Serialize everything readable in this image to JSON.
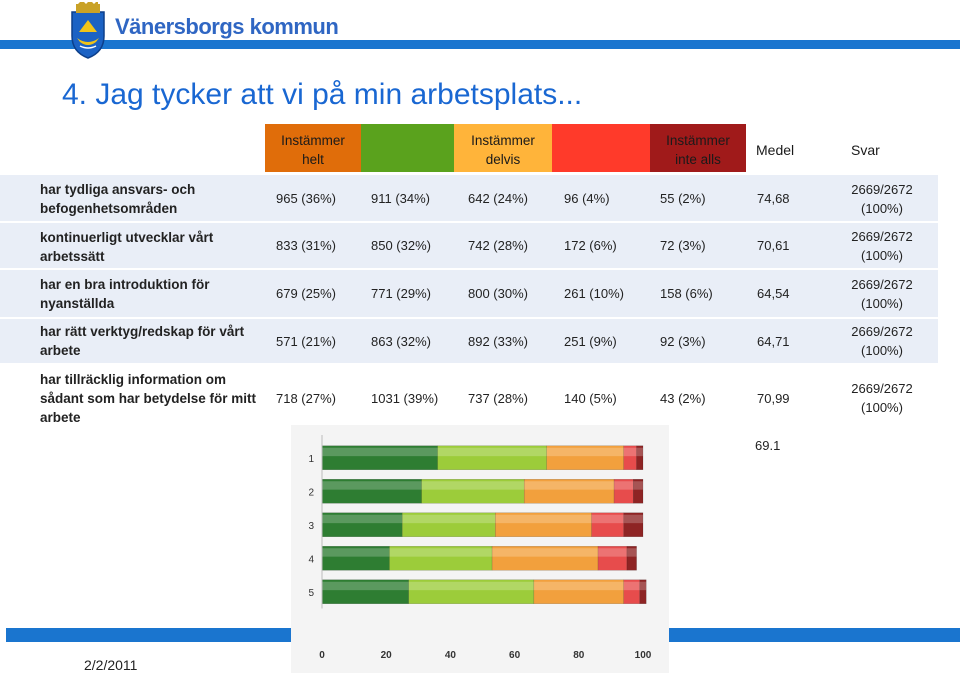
{
  "brand": "Vänersborgs kommun",
  "title": "4. Jag tycker att vi på min arbetsplats...",
  "header": {
    "helt": [
      "Instämmer",
      "helt"
    ],
    "delvis": [
      "Instämmer",
      "delvis"
    ],
    "inte": [
      "Instämmer",
      "inte alls"
    ],
    "medel": "Medel",
    "svar": "Svar",
    "colors": [
      "#e06d0a",
      "#5aa21d",
      "#9fd000",
      "#ffb43a",
      "#ff3a2a",
      "#a01a1a"
    ]
  },
  "rows": [
    {
      "label": "har tydliga ansvars- och befogenhetsområden",
      "values": [
        "965 (36%)",
        "911 (34%)",
        "642 (24%)",
        "96 (4%)",
        "55 (2%)"
      ],
      "medel": "74,68",
      "svar": [
        "2669/2672",
        "(100%)"
      ]
    },
    {
      "label": "kontinuerligt utvecklar vårt arbetssätt",
      "values": [
        "833 (31%)",
        "850 (32%)",
        "742 (28%)",
        "172 (6%)",
        "72 (3%)"
      ],
      "medel": "70,61",
      "svar": [
        "2669/2672",
        "(100%)"
      ]
    },
    {
      "label": "har en bra introduktion för nyanställda",
      "values": [
        "679 (25%)",
        "771 (29%)",
        "800 (30%)",
        "261 (10%)",
        "158 (6%)"
      ],
      "medel": "64,54",
      "svar": [
        "2669/2672",
        "(100%)"
      ]
    },
    {
      "label": "har rätt verktyg/redskap för vårt arbete",
      "values": [
        "571 (21%)",
        "863 (32%)",
        "892 (33%)",
        "251 (9%)",
        "92 (3%)"
      ],
      "medel": "64,71",
      "svar": [
        "2669/2672",
        "(100%)"
      ]
    },
    {
      "label": "har tillräcklig information om sådant som har betydelse för mitt arbete",
      "values": [
        "718 (27%)",
        "1031 (39%)",
        "737 (28%)",
        "140 (5%)",
        "43 (2%)"
      ],
      "medel": "70,99",
      "svar": [
        "2669/2672",
        "(100%)"
      ]
    }
  ],
  "chart_note": "69.1",
  "date": "2/2/2011",
  "chart_data": {
    "type": "bar",
    "orientation": "horizontal-stacked",
    "categories": [
      "1",
      "2",
      "3",
      "4",
      "5"
    ],
    "series": [
      {
        "values": [
          36,
          31,
          25,
          21,
          27
        ],
        "color": "#2e7d32"
      },
      {
        "values": [
          34,
          32,
          29,
          32,
          39
        ],
        "color": "#9ccc3a"
      },
      {
        "values": [
          24,
          28,
          30,
          33,
          28
        ],
        "color": "#f2a03d"
      },
      {
        "values": [
          4,
          6,
          10,
          9,
          5
        ],
        "color": "#e74c4c"
      },
      {
        "values": [
          2,
          3,
          6,
          3,
          2
        ],
        "color": "#8e2424"
      }
    ],
    "xlim": [
      0,
      100
    ],
    "xticks": [
      "0",
      "20",
      "40",
      "60",
      "80",
      "100"
    ]
  }
}
